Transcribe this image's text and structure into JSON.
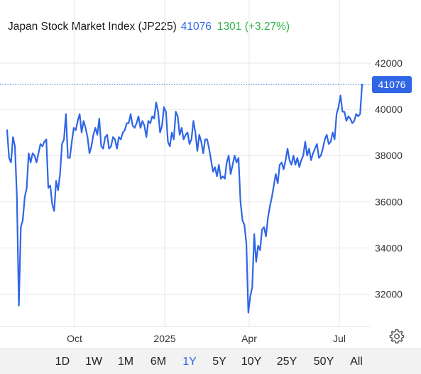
{
  "header": {
    "title": "Japan Stock Market Index (JP225)",
    "price": "41076",
    "change": "1301 (+3.27%)"
  },
  "colors": {
    "line": "#2f66e6",
    "change_positive": "#2fb34a",
    "grid": "#e6e6e6"
  },
  "chart_data": {
    "type": "line",
    "title": "Japan Stock Market Index (JP225)",
    "xlabel": "",
    "ylabel": "",
    "x_ticks": [
      "Oct",
      "2025",
      "Apr",
      "Jul"
    ],
    "y_ticks": [
      32000,
      34000,
      36000,
      38000,
      40000,
      42000
    ],
    "ylim": [
      30600,
      43200
    ],
    "grid": true,
    "last_value": 41076,
    "last_value_label": "41076",
    "series": [
      {
        "values": [
          39100,
          37900,
          37700,
          38800,
          38400,
          36200,
          31500,
          34900,
          35200,
          36200,
          36600,
          38100,
          37700,
          38100,
          38000,
          37700,
          38100,
          38500,
          38400,
          38600,
          38700,
          36600,
          36700,
          35900,
          35600,
          36900,
          36500,
          37200,
          38500,
          38700,
          39800,
          37900,
          37900,
          38600,
          39200,
          39100,
          39500,
          39800,
          39000,
          39500,
          39200,
          38800,
          38100,
          38400,
          38900,
          39200,
          38900,
          39600,
          38400,
          38300,
          38800,
          38900,
          38300,
          38400,
          38800,
          38700,
          38300,
          38800,
          38700,
          39000,
          39100,
          39400,
          39400,
          39800,
          39300,
          39200,
          39400,
          39700,
          39200,
          39500,
          39300,
          38800,
          39500,
          39400,
          39700,
          39600,
          40300,
          39900,
          39000,
          39300,
          40100,
          39900,
          38600,
          38400,
          39000,
          38700,
          39900,
          39700,
          38900,
          39200,
          38700,
          38900,
          39000,
          38500,
          38700,
          39500,
          39000,
          38200,
          38900,
          38600,
          38100,
          38700,
          38700,
          38300,
          37800,
          37300,
          37500,
          37100,
          37600,
          37000,
          37100,
          37000,
          37700,
          38000,
          37200,
          37600,
          38000,
          37700,
          37900,
          36000,
          35200,
          35000,
          34200,
          31200,
          31900,
          32300,
          34600,
          33400,
          34100,
          33900,
          34800,
          34900,
          34500,
          35300,
          35800,
          36200,
          36700,
          37200,
          36800,
          37600,
          37700,
          37400,
          37800,
          38300,
          37800,
          37600,
          38000,
          37600,
          37900,
          37500,
          37800,
          38000,
          38600,
          38000,
          38300,
          37800,
          38100,
          38300,
          38500,
          37900,
          38000,
          38300,
          38700,
          38900,
          38500,
          38600,
          39000,
          38700,
          39800,
          40100,
          40600,
          39900,
          39900,
          39500,
          39700,
          39600,
          39400,
          39500,
          39800,
          39700,
          39800,
          41076
        ]
      }
    ]
  },
  "range_buttons": [
    {
      "label": "1D",
      "active": false
    },
    {
      "label": "1W",
      "active": false
    },
    {
      "label": "1M",
      "active": false
    },
    {
      "label": "6M",
      "active": false
    },
    {
      "label": "1Y",
      "active": true
    },
    {
      "label": "5Y",
      "active": false
    },
    {
      "label": "10Y",
      "active": false
    },
    {
      "label": "25Y",
      "active": false
    },
    {
      "label": "50Y",
      "active": false
    },
    {
      "label": "All",
      "active": false
    }
  ],
  "icons": {
    "settings": "gear-icon"
  }
}
